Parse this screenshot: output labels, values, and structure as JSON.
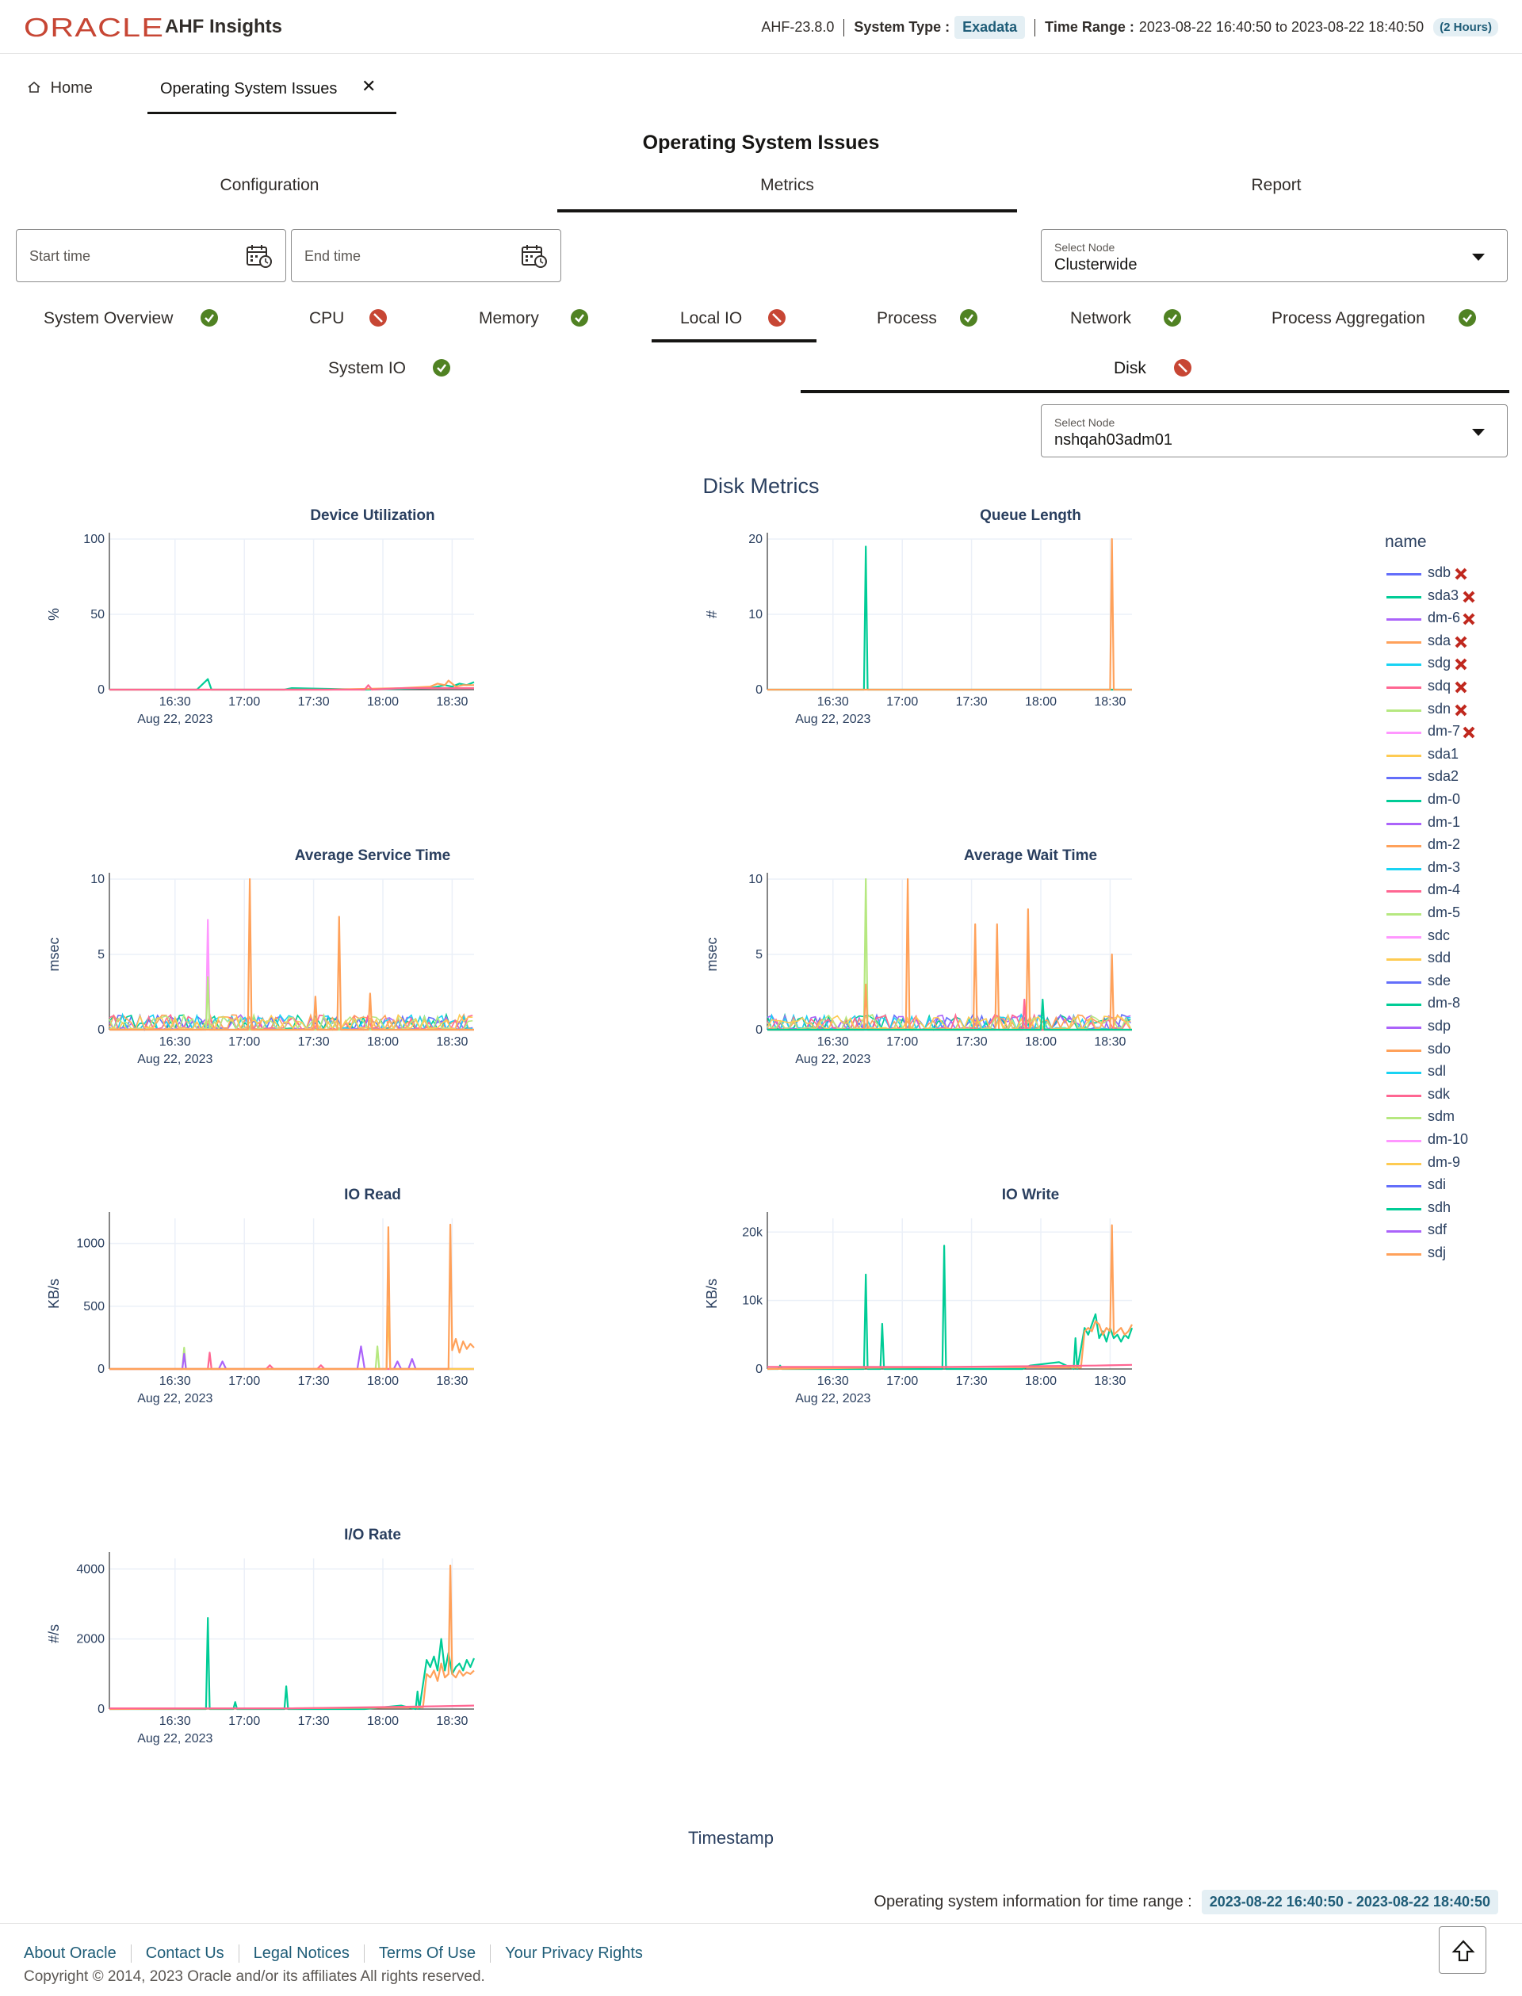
{
  "header": {
    "logo_text": "ORACLE",
    "app_name": "AHF Insights",
    "version": "AHF-23.8.0",
    "system_type_label": "System Type :",
    "system_type": "Exadata",
    "time_range_label": "Time Range :",
    "time_range": "2023-08-22 16:40:50 to 2023-08-22 18:40:50",
    "duration": "(2 Hours)",
    "accent_color": "#c74634"
  },
  "nav": {
    "home": "Home",
    "home_icon": "home-icon",
    "active_tab": "Operating System Issues",
    "close_icon": "close-icon"
  },
  "page_title": "Operating System Issues",
  "subtabs": {
    "configuration": "Configuration",
    "metrics": "Metrics",
    "report": "Report",
    "active": "Metrics"
  },
  "filters": {
    "start_placeholder": "Start time",
    "end_placeholder": "End time",
    "calendar_icon": "calendar-icon",
    "select_node_label": "Select Node",
    "select_node_value": "Clusterwide",
    "select_node2_label": "Select Node",
    "select_node2_value": "nshqah03adm01"
  },
  "metric_tabs": [
    {
      "label": "System Overview",
      "status": "ok"
    },
    {
      "label": "CPU",
      "status": "problem"
    },
    {
      "label": "Memory",
      "status": "ok"
    },
    {
      "label": "Local IO",
      "status": "problem"
    },
    {
      "label": "Process",
      "status": "ok"
    },
    {
      "label": "Network",
      "status": "ok"
    },
    {
      "label": "Process Aggregation",
      "status": "ok"
    }
  ],
  "localio_tabs": [
    {
      "label": "System IO",
      "status": "ok"
    },
    {
      "label": "Disk",
      "status": "problem"
    }
  ],
  "status_colors": {
    "ok": "#508223",
    "problem": "#c74634"
  },
  "disk_metrics_title": "Disk Metrics",
  "x_axis_title": "Timestamp",
  "x_tick_labels": [
    "16:30",
    "17:00",
    "17:30",
    "18:00",
    "18:30"
  ],
  "x_date_label": "Aug 22, 2023",
  "legend": {
    "title": "name",
    "items": [
      {
        "name": "sdb",
        "color": "#636efa",
        "flagged": true
      },
      {
        "name": "sda3",
        "color": "#00cc96",
        "flagged": true
      },
      {
        "name": "dm-6",
        "color": "#ab63fa",
        "flagged": true
      },
      {
        "name": "sda",
        "color": "#ffa15a",
        "flagged": true
      },
      {
        "name": "sdg",
        "color": "#19d3f3",
        "flagged": true
      },
      {
        "name": "sdq",
        "color": "#ff6692",
        "flagged": true
      },
      {
        "name": "sdn",
        "color": "#b6e880",
        "flagged": true
      },
      {
        "name": "dm-7",
        "color": "#ff97ff",
        "flagged": true
      },
      {
        "name": "sda1",
        "color": "#fecb52",
        "flagged": false
      },
      {
        "name": "sda2",
        "color": "#636efa",
        "flagged": false
      },
      {
        "name": "dm-0",
        "color": "#00cc96",
        "flagged": false
      },
      {
        "name": "dm-1",
        "color": "#ab63fa",
        "flagged": false
      },
      {
        "name": "dm-2",
        "color": "#ffa15a",
        "flagged": false
      },
      {
        "name": "dm-3",
        "color": "#19d3f3",
        "flagged": false
      },
      {
        "name": "dm-4",
        "color": "#ff6692",
        "flagged": false
      },
      {
        "name": "dm-5",
        "color": "#b6e880",
        "flagged": false
      },
      {
        "name": "sdc",
        "color": "#ff97ff",
        "flagged": false
      },
      {
        "name": "sdd",
        "color": "#fecb52",
        "flagged": false
      },
      {
        "name": "sde",
        "color": "#636efa",
        "flagged": false
      },
      {
        "name": "dm-8",
        "color": "#00cc96",
        "flagged": false
      },
      {
        "name": "sdp",
        "color": "#ab63fa",
        "flagged": false
      },
      {
        "name": "sdo",
        "color": "#ffa15a",
        "flagged": false
      },
      {
        "name": "sdl",
        "color": "#19d3f3",
        "flagged": false
      },
      {
        "name": "sdk",
        "color": "#ff6692",
        "flagged": false
      },
      {
        "name": "sdm",
        "color": "#b6e880",
        "flagged": false
      },
      {
        "name": "dm-10",
        "color": "#ff97ff",
        "flagged": false
      },
      {
        "name": "dm-9",
        "color": "#fecb52",
        "flagged": false
      },
      {
        "name": "sdi",
        "color": "#636efa",
        "flagged": false
      },
      {
        "name": "sdh",
        "color": "#00cc96",
        "flagged": false
      },
      {
        "name": "sdf",
        "color": "#ab63fa",
        "flagged": false
      },
      {
        "name": "sdj",
        "color": "#ffa15a",
        "flagged": false
      }
    ]
  },
  "chart_data": [
    {
      "type": "line",
      "title": "Device Utilization",
      "ylabel": "%",
      "ylim": [
        0,
        100
      ],
      "yticks": [
        "0",
        "50",
        "100"
      ],
      "ytick_values": [
        0,
        50,
        100
      ],
      "series": [
        {
          "name": "sda3",
          "color": "#00cc96",
          "x": [
            0,
            0.1,
            0.24,
            0.27,
            0.28,
            0.3,
            0.48,
            0.5,
            0.7,
            0.88,
            0.9,
            0.92,
            0.94,
            0.96,
            0.98,
            1.0
          ],
          "y": [
            0,
            0,
            0,
            7,
            0,
            0,
            0,
            1,
            0,
            1,
            2,
            3,
            2,
            4,
            3,
            5
          ]
        },
        {
          "name": "sda",
          "color": "#ffa15a",
          "x": [
            0,
            0.3,
            0.6,
            0.8,
            0.88,
            0.9,
            0.92,
            0.93,
            0.95,
            0.97,
            1.0
          ],
          "y": [
            0,
            0,
            0,
            1,
            2,
            4,
            3,
            6,
            2,
            3,
            3
          ]
        },
        {
          "name": "sdq",
          "color": "#ff6692",
          "x": [
            0,
            0.55,
            0.7,
            0.71,
            0.72,
            0.8,
            1.0
          ],
          "y": [
            0,
            0,
            0,
            3,
            0,
            1,
            1
          ]
        }
      ]
    },
    {
      "type": "line",
      "title": "Queue Length",
      "ylabel": "#",
      "ylim": [
        0,
        20
      ],
      "yticks": [
        "0",
        "10",
        "20"
      ],
      "ytick_values": [
        0,
        10,
        20
      ],
      "series": [
        {
          "name": "sda3",
          "color": "#00cc96",
          "x": [
            0,
            0.265,
            0.27,
            0.275,
            1.0
          ],
          "y": [
            0,
            0,
            19,
            0,
            0
          ]
        },
        {
          "name": "sda",
          "color": "#ffa15a",
          "x": [
            0,
            0.94,
            0.945,
            0.95,
            1.0
          ],
          "y": [
            0,
            0,
            20,
            0,
            0
          ]
        }
      ]
    },
    {
      "type": "line",
      "title": "Average Service Time",
      "ylabel": "msec",
      "ylim": [
        0,
        10
      ],
      "yticks": [
        "0",
        "5",
        "10"
      ],
      "ytick_values": [
        0,
        5,
        10
      ],
      "noise": true,
      "series": [
        {
          "name": "dm-7",
          "color": "#ff97ff",
          "x": [
            0,
            0.265,
            0.27,
            0.275,
            1.0
          ],
          "y": [
            0,
            0,
            7.3,
            0,
            0
          ]
        },
        {
          "name": "sdn",
          "color": "#b6e880",
          "x": [
            0,
            0.265,
            0.27,
            0.275,
            1.0
          ],
          "y": [
            0,
            0,
            3.5,
            0,
            0
          ]
        },
        {
          "name": "sda",
          "color": "#ffa15a",
          "x": [
            0,
            0.38,
            0.385,
            0.39,
            0.56,
            0.565,
            0.57,
            0.625,
            0.63,
            0.635,
            0.71,
            0.715,
            0.72,
            1.0
          ],
          "y": [
            0,
            0,
            10,
            0,
            0,
            2.2,
            0,
            0,
            7.5,
            0,
            0,
            2.4,
            0,
            0
          ]
        }
      ]
    },
    {
      "type": "line",
      "title": "Average Wait Time",
      "ylabel": "msec",
      "ylim": [
        0,
        10
      ],
      "yticks": [
        "0",
        "5",
        "10"
      ],
      "ytick_values": [
        0,
        5,
        10
      ],
      "noise": true,
      "series": [
        {
          "name": "sdn",
          "color": "#b6e880",
          "x": [
            0,
            0.265,
            0.27,
            0.275,
            1.0
          ],
          "y": [
            0,
            0,
            10,
            0,
            0
          ]
        },
        {
          "name": "sda",
          "color": "#ffa15a",
          "x": [
            0,
            0.265,
            0.27,
            0.275,
            0.38,
            0.385,
            0.39,
            0.565,
            0.57,
            0.575,
            0.625,
            0.63,
            0.635,
            0.71,
            0.715,
            0.72,
            0.94,
            0.945,
            0.95,
            1.0
          ],
          "y": [
            0,
            0,
            3,
            0,
            0,
            10,
            0,
            0,
            7,
            0,
            0,
            7,
            0,
            0,
            8,
            0,
            0,
            5,
            0,
            0
          ]
        },
        {
          "name": "sdq",
          "color": "#ff6692",
          "x": [
            0,
            0.7,
            0.705,
            0.71,
            1.0
          ],
          "y": [
            0,
            0,
            2,
            0,
            0
          ]
        },
        {
          "name": "sda3",
          "color": "#00cc96",
          "x": [
            0,
            0.75,
            0.755,
            0.76,
            1.0
          ],
          "y": [
            0,
            0,
            2,
            0,
            0
          ]
        }
      ]
    },
    {
      "type": "line",
      "title": "IO Read",
      "ylabel": "KB/s",
      "ylim": [
        0,
        1200
      ],
      "yticks": [
        "0",
        "500",
        "1000"
      ],
      "ytick_values": [
        0,
        500,
        1000
      ],
      "series": [
        {
          "name": "sdn",
          "color": "#b6e880",
          "x": [
            0,
            0.2,
            0.205,
            0.21,
            0.7,
            0.73,
            0.735,
            0.74,
            1.0
          ],
          "y": [
            0,
            0,
            170,
            0,
            0,
            0,
            180,
            0,
            0
          ]
        },
        {
          "name": "dm-6",
          "color": "#ab63fa",
          "x": [
            0,
            0.2,
            0.205,
            0.21,
            0.3,
            0.31,
            0.32,
            0.68,
            0.69,
            0.7,
            0.78,
            0.79,
            0.8,
            0.82,
            0.83,
            0.84,
            1.0
          ],
          "y": [
            0,
            0,
            120,
            0,
            0,
            60,
            0,
            0,
            180,
            0,
            0,
            60,
            0,
            0,
            80,
            0,
            0
          ]
        },
        {
          "name": "sdq",
          "color": "#ff6692",
          "x": [
            0,
            0.27,
            0.275,
            0.28,
            0.43,
            0.44,
            0.45,
            0.57,
            0.58,
            0.59,
            1.0
          ],
          "y": [
            0,
            0,
            130,
            0,
            0,
            30,
            0,
            0,
            30,
            0,
            0
          ]
        },
        {
          "name": "sda1",
          "color": "#fecb52",
          "x": [
            0,
            0.76,
            0.765,
            0.77,
            1.0
          ],
          "y": [
            0,
            0,
            500,
            0,
            0
          ]
        },
        {
          "name": "sda",
          "color": "#ffa15a",
          "x": [
            0,
            0.76,
            0.765,
            0.77,
            0.93,
            0.935,
            0.94,
            0.95,
            0.96,
            0.97,
            0.98,
            0.99,
            1.0
          ],
          "y": [
            0,
            0,
            1130,
            0,
            0,
            1150,
            150,
            240,
            130,
            220,
            160,
            200,
            170
          ]
        }
      ]
    },
    {
      "type": "line",
      "title": "IO Write",
      "ylabel": "KB/s",
      "ylim": [
        0,
        22000
      ],
      "yticks": [
        "0",
        "10k",
        "20k"
      ],
      "ytick_values": [
        0,
        10000,
        20000
      ],
      "series": [
        {
          "name": "sda3",
          "color": "#00cc96",
          "x": [
            0,
            0.03,
            0.035,
            0.04,
            0.265,
            0.27,
            0.275,
            0.31,
            0.315,
            0.32,
            0.48,
            0.485,
            0.49,
            0.7,
            0.72,
            0.8,
            0.84,
            0.845,
            0.85,
            0.87,
            0.88,
            0.9,
            0.91,
            0.92,
            0.93,
            0.94,
            0.95,
            0.96,
            0.97,
            0.98,
            0.99,
            1.0
          ],
          "y": [
            0,
            0,
            500,
            0,
            0,
            13800,
            0,
            0,
            6600,
            0,
            0,
            18000,
            0,
            0,
            500,
            1000,
            0,
            4500,
            0,
            6000,
            5000,
            8000,
            4500,
            5500,
            4000,
            6000,
            4500,
            5000,
            4000,
            5000,
            4500,
            6000
          ]
        },
        {
          "name": "sda",
          "color": "#ffa15a",
          "x": [
            0,
            0.3,
            0.6,
            0.86,
            0.87,
            0.88,
            0.89,
            0.9,
            0.91,
            0.92,
            0.93,
            0.94,
            0.945,
            0.95,
            0.96,
            0.97,
            0.98,
            0.99,
            1.0
          ],
          "y": [
            0,
            200,
            300,
            200,
            5500,
            6000,
            5500,
            7000,
            6500,
            5000,
            6000,
            5500,
            21000,
            5000,
            5500,
            6000,
            5000,
            5500,
            6500
          ]
        },
        {
          "name": "sdq",
          "color": "#ff6692",
          "x": [
            0,
            0.5,
            0.9,
            1.0
          ],
          "y": [
            300,
            300,
            500,
            600
          ]
        }
      ]
    },
    {
      "type": "line",
      "title": "I/O Rate",
      "ylabel": "#/s",
      "ylim": [
        0,
        4300
      ],
      "yticks": [
        "0",
        "2000",
        "4000"
      ],
      "ytick_values": [
        0,
        2000,
        4000
      ],
      "series": [
        {
          "name": "sda3",
          "color": "#00cc96",
          "x": [
            0,
            0.265,
            0.27,
            0.275,
            0.34,
            0.345,
            0.35,
            0.48,
            0.485,
            0.49,
            0.7,
            0.8,
            0.84,
            0.845,
            0.85,
            0.87,
            0.88,
            0.89,
            0.9,
            0.91,
            0.92,
            0.93,
            0.94,
            0.95,
            0.96,
            0.97,
            0.98,
            0.99,
            1.0
          ],
          "y": [
            0,
            0,
            2600,
            0,
            0,
            200,
            0,
            0,
            650,
            0,
            0,
            100,
            0,
            500,
            0,
            1400,
            1200,
            1500,
            1100,
            2000,
            1100,
            1600,
            1000,
            1200,
            1300,
            1100,
            1400,
            1200,
            1450
          ]
        },
        {
          "name": "sda",
          "color": "#ffa15a",
          "x": [
            0,
            0.5,
            0.86,
            0.87,
            0.88,
            0.89,
            0.9,
            0.91,
            0.92,
            0.93,
            0.935,
            0.94,
            0.95,
            0.96,
            0.97,
            0.98,
            0.99,
            1.0
          ],
          "y": [
            0,
            20,
            50,
            1000,
            900,
            1100,
            800,
            1300,
            900,
            1000,
            4100,
            1000,
            900,
            1100,
            950,
            1050,
            1000,
            1100
          ]
        },
        {
          "name": "sdq",
          "color": "#ff6692",
          "x": [
            0,
            0.5,
            0.9,
            1.0
          ],
          "y": [
            20,
            20,
            80,
            100
          ]
        }
      ]
    }
  ],
  "info": {
    "label": "Operating system information for time range :",
    "range": "2023-08-22 16:40:50 - 2023-08-22 18:40:50"
  },
  "footer": {
    "links": [
      "About Oracle",
      "Contact Us",
      "Legal Notices",
      "Terms Of Use",
      "Your Privacy Rights"
    ],
    "copyright": "Copyright © 2014, 2023 Oracle and/or its affiliates All rights reserved.",
    "scroll_top_icon": "arrow-up-icon"
  }
}
